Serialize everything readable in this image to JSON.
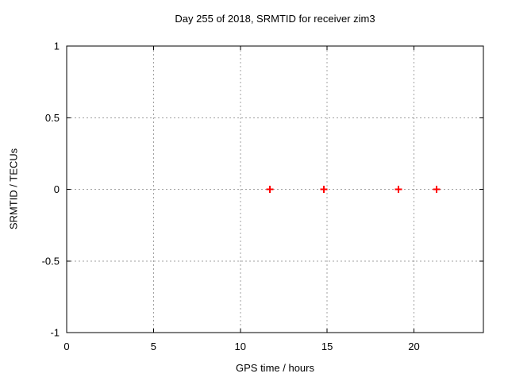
{
  "chart_data": {
    "type": "scatter",
    "title": "Day 255 of 2018, SRMTID for receiver zim3",
    "xlabel": "GPS time / hours",
    "ylabel": "SRMTID / TECUs",
    "xlim": [
      0,
      24
    ],
    "ylim": [
      -1,
      1
    ],
    "grid": true,
    "legend_position": "none",
    "xticks": [
      {
        "value": 0,
        "label": "0"
      },
      {
        "value": 5,
        "label": "5"
      },
      {
        "value": 10,
        "label": "10"
      },
      {
        "value": 15,
        "label": "15"
      },
      {
        "value": 20,
        "label": "20"
      }
    ],
    "yticks": [
      {
        "value": -1,
        "label": "-1"
      },
      {
        "value": -0.5,
        "label": "-0.5"
      },
      {
        "value": 0,
        "label": "0"
      },
      {
        "value": 0.5,
        "label": "0.5"
      },
      {
        "value": 1,
        "label": "1"
      }
    ],
    "series": [
      {
        "name": "SRMTID",
        "marker": "plus",
        "color": "#ff0000",
        "points": [
          {
            "x": 11.7,
            "y": 0.0
          },
          {
            "x": 14.8,
            "y": 0.0
          },
          {
            "x": 19.1,
            "y": 0.0
          },
          {
            "x": 21.3,
            "y": 0.0
          }
        ]
      }
    ],
    "colors": {
      "background": "#ffffff",
      "border": "#000000",
      "grid": "#a0a0a0",
      "text": "#000000"
    }
  }
}
